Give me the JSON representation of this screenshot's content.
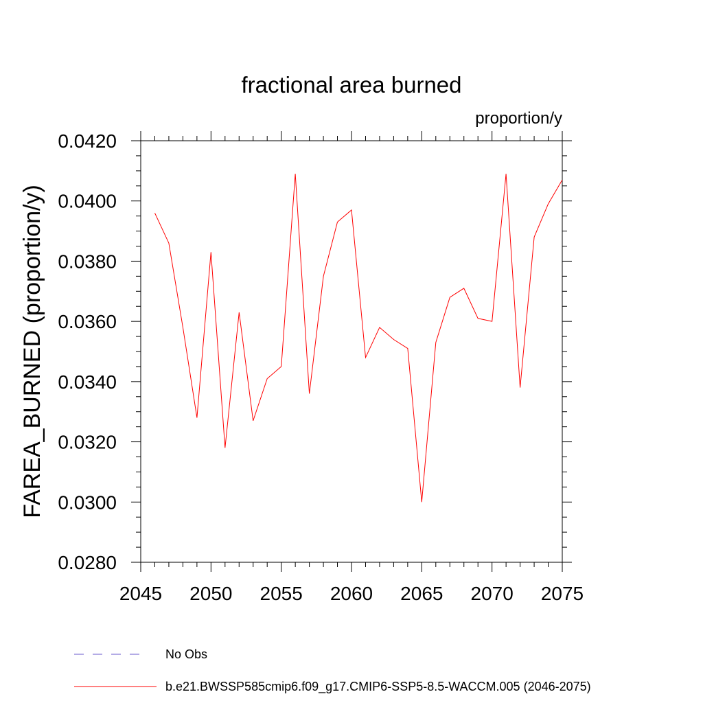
{
  "chart_data": {
    "type": "line",
    "title": "fractional area burned",
    "subtitle": "proportion/y",
    "ylabel": "FAREA_BURNED  (proportion/y)",
    "xlabel": "",
    "xlim": [
      2045,
      2075
    ],
    "ylim": [
      0.028,
      0.042
    ],
    "x_ticks": [
      "2045",
      "2050",
      "2055",
      "2060",
      "2065",
      "2070",
      "2075"
    ],
    "y_ticks": [
      "0.0280",
      "0.0300",
      "0.0320",
      "0.0340",
      "0.0360",
      "0.0380",
      "0.0400",
      "0.0420"
    ],
    "grid": false,
    "series": [
      {
        "name": "b.e21.BWSSP585cmip6.f09_g17.CMIP6-SSP5-8.5-WACCM.005 (2046-2075)",
        "color": "#ff0000",
        "style": "solid",
        "x": [
          2046,
          2047,
          2048,
          2049,
          2050,
          2051,
          2052,
          2053,
          2054,
          2055,
          2056,
          2057,
          2058,
          2059,
          2060,
          2061,
          2062,
          2063,
          2064,
          2065,
          2066,
          2067,
          2068,
          2069,
          2070,
          2071,
          2072,
          2073,
          2074,
          2075
        ],
        "values": [
          0.0396,
          0.0386,
          0.0358,
          0.0328,
          0.0383,
          0.0318,
          0.0363,
          0.0327,
          0.0341,
          0.0345,
          0.0409,
          0.0336,
          0.0375,
          0.0393,
          0.0397,
          0.0348,
          0.0358,
          0.0354,
          0.0351,
          0.03,
          0.0353,
          0.0368,
          0.0371,
          0.0361,
          0.036,
          0.0409,
          0.0338,
          0.0388,
          0.0399,
          0.0407
        ]
      }
    ],
    "legend": {
      "placement": "bottom-left",
      "entries": [
        {
          "label": "No Obs",
          "color": "#6a5acd",
          "style": "dashed"
        },
        {
          "label": "b.e21.BWSSP585cmip6.f09_g17.CMIP6-SSP5-8.5-WACCM.005 (2046-2075)",
          "color": "#ff0000",
          "style": "solid"
        }
      ]
    }
  }
}
